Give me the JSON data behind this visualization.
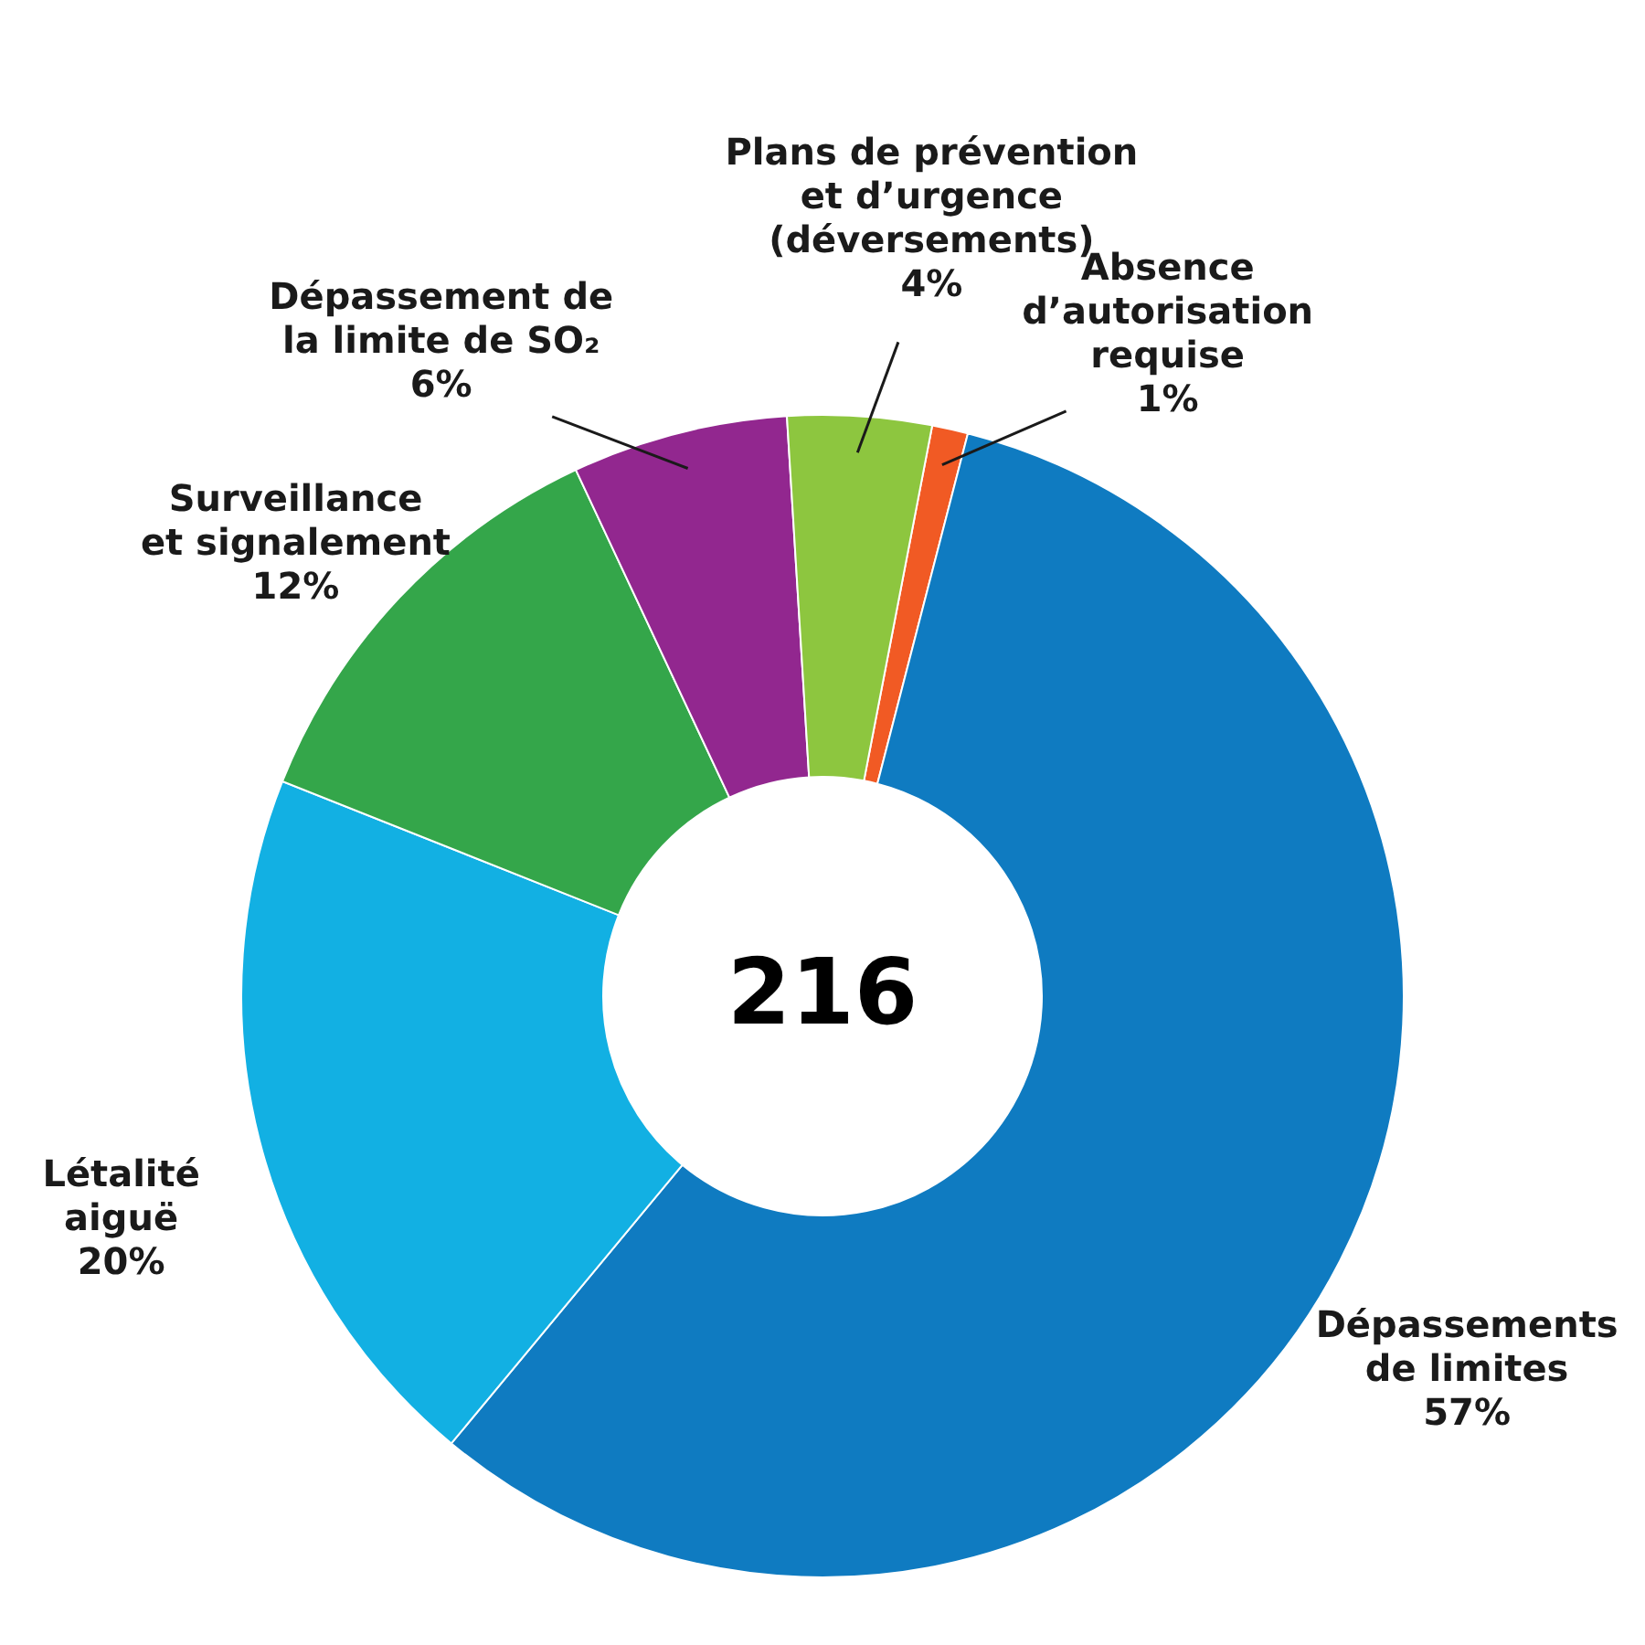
{
  "chart_data": {
    "type": "donut",
    "categories": [
      "Absence\nd’autorisation\nrequise",
      "Dépassements\nde limites",
      "Létalité\naiguë",
      "Surveillance\net signalement",
      "Dépassement de\nla limite de SO₂",
      "Plans de prévention\net d’urgence\n(déversements)"
    ],
    "values": [
      1,
      57,
      20,
      12,
      6,
      4
    ],
    "colors": [
      "#f15a24",
      "#0f7bc1",
      "#12b0e3",
      "#34a64a",
      "#92278f",
      "#8dc63f"
    ],
    "value_labels": [
      "1%",
      "57%",
      "20%",
      "12%",
      "6%",
      "4%"
    ],
    "annotations": [
      "216"
    ]
  }
}
